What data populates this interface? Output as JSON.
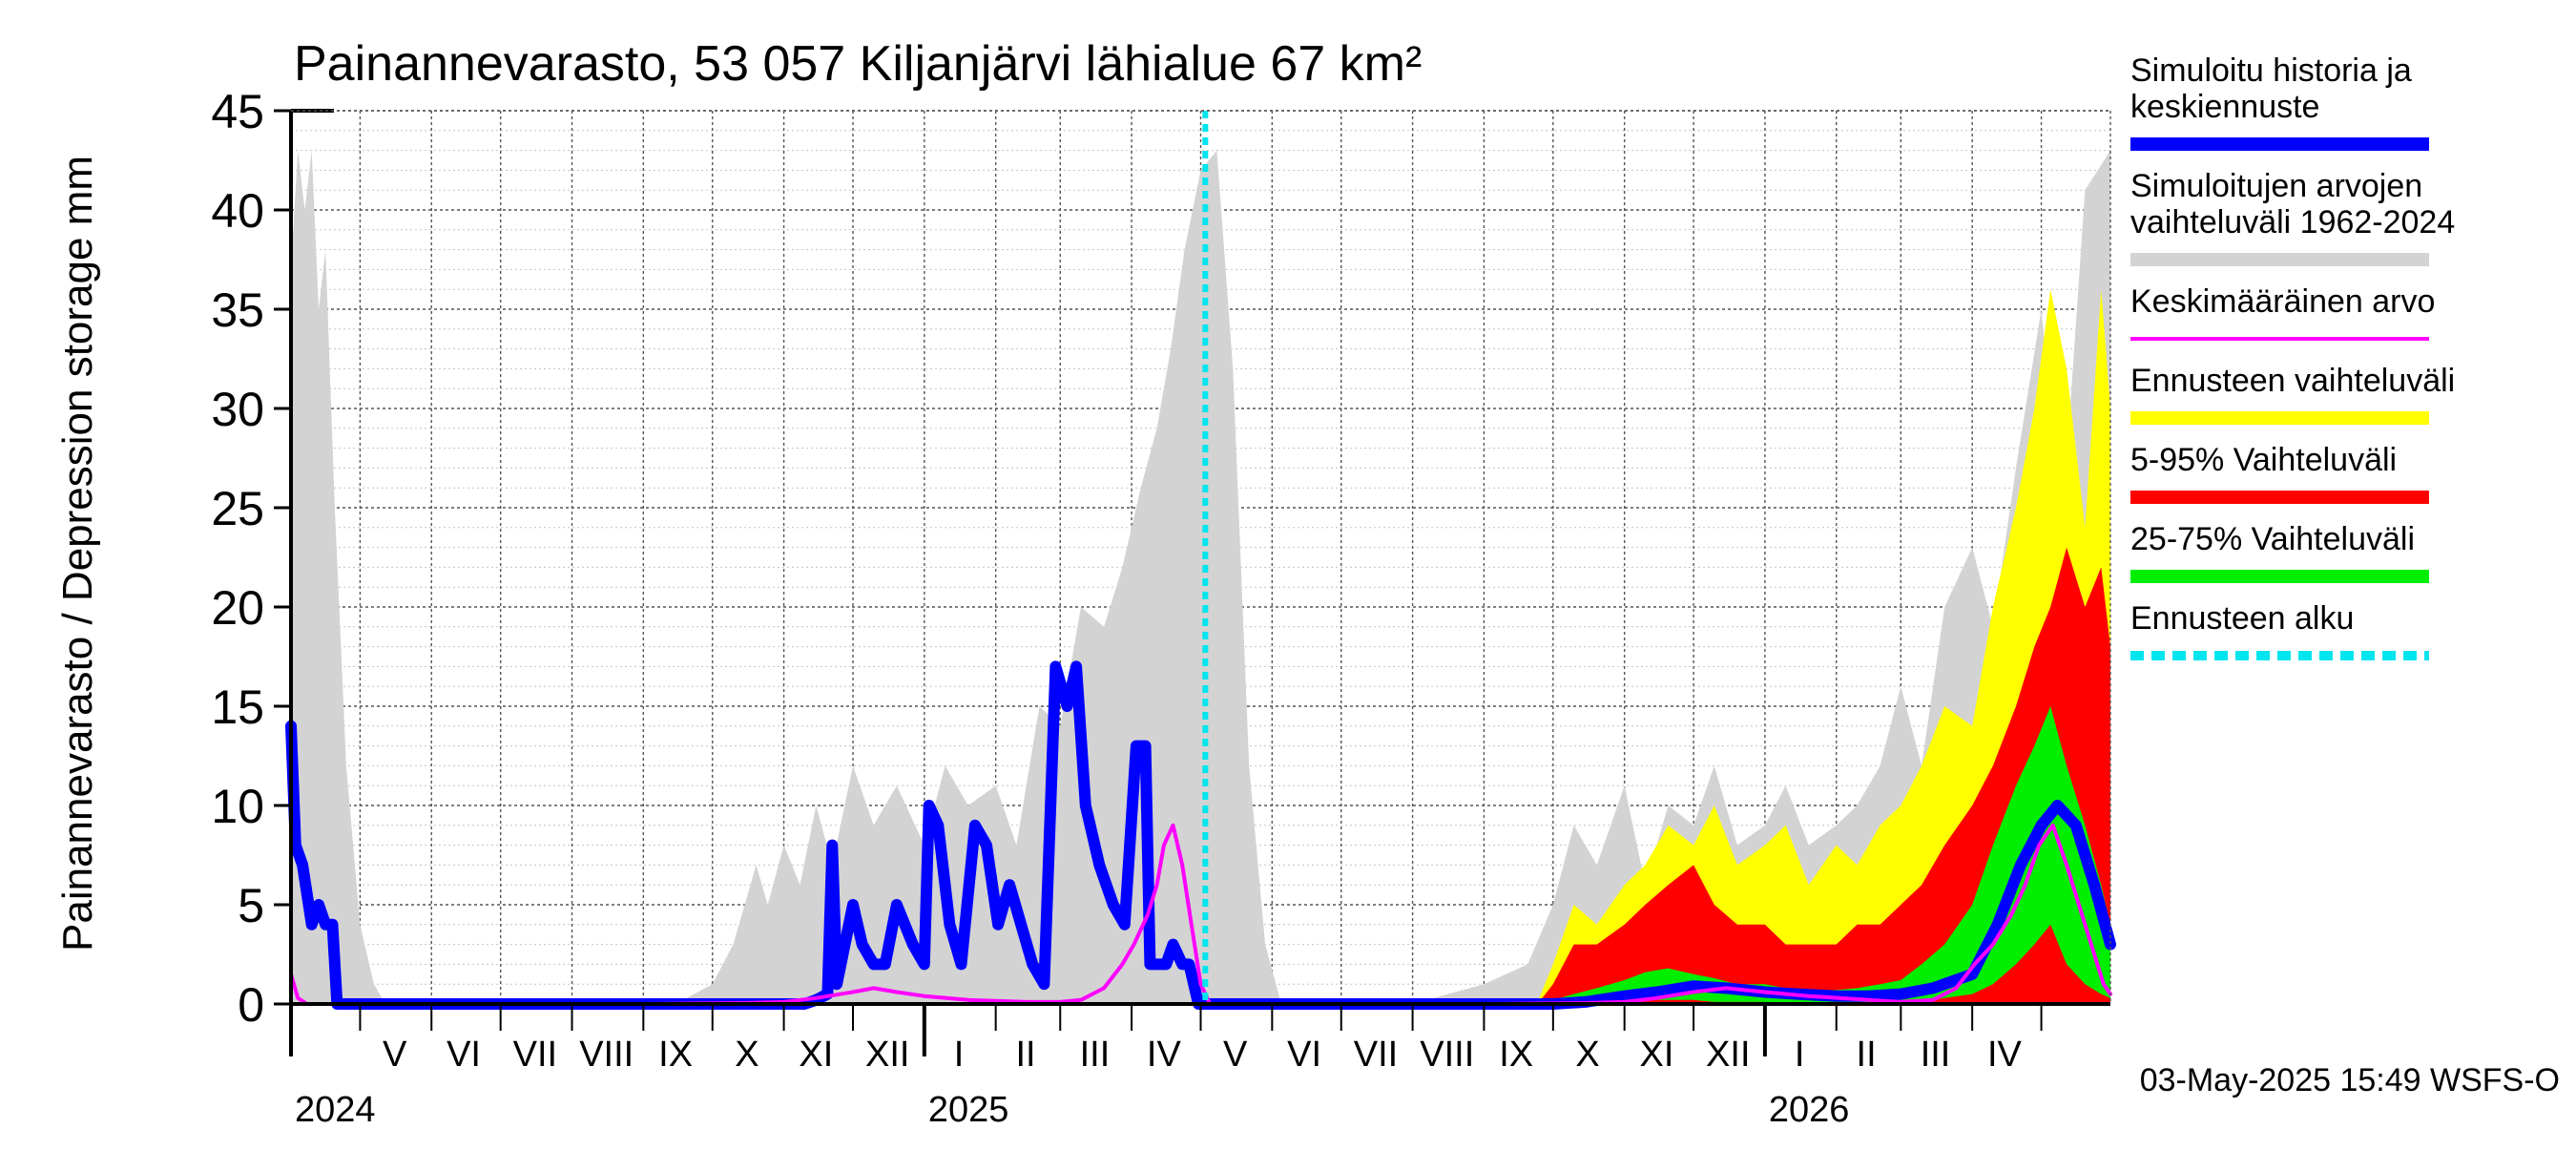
{
  "chart_data": {
    "type": "area",
    "title": "Painannevarasto, 53 057 Kiljanjärvi lähialue 67 km²",
    "ylabel": "Painannevarasto / Depression storage    mm",
    "ylim": [
      0,
      45
    ],
    "yticks": [
      0,
      5,
      10,
      15,
      20,
      25,
      30,
      35,
      40,
      45
    ],
    "xlim": [
      "2024-04-01",
      "2026-05-31"
    ],
    "forecast_start": "2025-05-03",
    "grid": true,
    "legend_position": "right",
    "month_labels": [
      {
        "label": "V",
        "date": "2024-05-16"
      },
      {
        "label": "VI",
        "date": "2024-06-15"
      },
      {
        "label": "VII",
        "date": "2024-07-16"
      },
      {
        "label": "VIII",
        "date": "2024-08-16"
      },
      {
        "label": "IX",
        "date": "2024-09-15"
      },
      {
        "label": "X",
        "date": "2024-10-16"
      },
      {
        "label": "XI",
        "date": "2024-11-15"
      },
      {
        "label": "XII",
        "date": "2024-12-16"
      },
      {
        "label": "I",
        "date": "2025-01-16"
      },
      {
        "label": "II",
        "date": "2025-02-14"
      },
      {
        "label": "III",
        "date": "2025-03-16"
      },
      {
        "label": "IV",
        "date": "2025-04-15"
      },
      {
        "label": "V",
        "date": "2025-05-16"
      },
      {
        "label": "VI",
        "date": "2025-06-15"
      },
      {
        "label": "VII",
        "date": "2025-07-16"
      },
      {
        "label": "VIII",
        "date": "2025-08-16"
      },
      {
        "label": "IX",
        "date": "2025-09-15"
      },
      {
        "label": "X",
        "date": "2025-10-16"
      },
      {
        "label": "XI",
        "date": "2025-11-15"
      },
      {
        "label": "XII",
        "date": "2025-12-16"
      },
      {
        "label": "I",
        "date": "2026-01-16"
      },
      {
        "label": "II",
        "date": "2026-02-14"
      },
      {
        "label": "III",
        "date": "2026-03-16"
      },
      {
        "label": "IV",
        "date": "2026-04-15"
      }
    ],
    "year_labels": [
      {
        "label": "2024",
        "date": "2024-04-01"
      },
      {
        "label": "2025",
        "date": "2025-01-01"
      },
      {
        "label": "2026",
        "date": "2026-01-01"
      }
    ],
    "series": [
      {
        "name": "Simuloitujen arvojen vaihteluväli 1962-2024",
        "kind": "band",
        "color": "#d3d3d3",
        "x": [
          "2024-04-01",
          "2024-04-04",
          "2024-04-07",
          "2024-04-10",
          "2024-04-13",
          "2024-04-16",
          "2024-04-20",
          "2024-04-25",
          "2024-05-01",
          "2024-05-07",
          "2024-05-12",
          "2024-06-15",
          "2024-08-01",
          "2024-09-15",
          "2024-10-01",
          "2024-10-10",
          "2024-10-20",
          "2024-10-25",
          "2024-11-01",
          "2024-11-08",
          "2024-11-15",
          "2024-11-22",
          "2024-12-01",
          "2024-12-10",
          "2024-12-20",
          "2025-01-01",
          "2025-01-10",
          "2025-01-20",
          "2025-02-01",
          "2025-02-10",
          "2025-02-20",
          "2025-03-01",
          "2025-03-10",
          "2025-03-20",
          "2025-03-28",
          "2025-04-05",
          "2025-04-12",
          "2025-04-18",
          "2025-04-24",
          "2025-05-01",
          "2025-05-08",
          "2025-05-15",
          "2025-05-22",
          "2025-05-29",
          "2025-06-05",
          "2025-06-20",
          "2025-08-01",
          "2025-09-01",
          "2025-09-20",
          "2025-10-01",
          "2025-10-10",
          "2025-10-20",
          "2025-11-01",
          "2025-11-10",
          "2025-11-20",
          "2025-12-01",
          "2025-12-10",
          "2025-12-20",
          "2026-01-01",
          "2026-01-10",
          "2026-01-20",
          "2026-02-01",
          "2026-02-10",
          "2026-02-20",
          "2026-03-01",
          "2026-03-10",
          "2026-03-20",
          "2026-04-01",
          "2026-04-10",
          "2026-04-20",
          "2026-05-01",
          "2026-05-10",
          "2026-05-20",
          "2026-05-31"
        ],
        "upper": [
          37,
          43,
          40,
          43,
          35,
          38,
          25,
          12,
          4,
          1,
          0,
          0,
          0,
          0,
          1,
          3,
          7,
          5,
          8,
          6,
          10,
          7,
          12,
          9,
          11,
          8,
          12,
          10,
          11,
          8,
          15,
          14,
          20,
          19,
          22,
          26,
          29,
          33,
          38,
          42,
          43,
          32,
          12,
          3,
          0,
          0,
          0,
          1,
          2,
          5,
          9,
          7,
          11,
          6,
          10,
          9,
          12,
          8,
          9,
          11,
          8,
          9,
          10,
          12,
          16,
          12,
          20,
          23,
          19,
          27,
          35,
          24,
          41,
          43
        ],
        "lower": [
          0,
          0,
          0,
          0,
          0,
          0,
          0,
          0,
          0,
          0,
          0,
          0,
          0,
          0,
          0,
          0,
          0,
          0,
          0,
          0,
          0,
          0,
          0,
          0,
          0,
          0,
          0,
          0,
          0,
          0,
          0,
          0,
          0,
          0,
          0,
          0,
          0,
          0,
          0,
          0,
          0,
          0,
          0,
          0,
          0,
          0,
          0,
          0,
          0,
          0,
          0,
          0,
          0,
          0,
          0,
          0,
          0,
          0,
          0,
          0,
          0,
          0,
          0,
          0,
          0,
          0,
          0,
          0,
          0,
          0,
          0,
          0,
          0,
          0
        ]
      },
      {
        "name": "Ennusteen vaihteluväli",
        "kind": "band",
        "color": "#ffff00",
        "x": [
          "2025-09-25",
          "2025-10-01",
          "2025-10-10",
          "2025-10-20",
          "2025-11-01",
          "2025-11-10",
          "2025-11-20",
          "2025-12-01",
          "2025-12-10",
          "2025-12-20",
          "2026-01-01",
          "2026-01-10",
          "2026-01-20",
          "2026-02-01",
          "2026-02-10",
          "2026-02-20",
          "2026-03-01",
          "2026-03-10",
          "2026-03-20",
          "2026-04-01",
          "2026-04-10",
          "2026-04-20",
          "2026-04-28",
          "2026-05-05",
          "2026-05-12",
          "2026-05-20",
          "2026-05-27",
          "2026-05-31"
        ],
        "upper": [
          0.3,
          2,
          5,
          4,
          6,
          7,
          9,
          8,
          10,
          7,
          8,
          9,
          6,
          8,
          7,
          9,
          10,
          12,
          15,
          14,
          20,
          25,
          30,
          36,
          32,
          24,
          36,
          30
        ],
        "lower": [
          0,
          0,
          0,
          0,
          0,
          0,
          0,
          0,
          0,
          0,
          0,
          0,
          0,
          0,
          0,
          0,
          0,
          0,
          0,
          0,
          0,
          0,
          0,
          0,
          0,
          0,
          0,
          0
        ]
      },
      {
        "name": "5-95% Vaihteluväli",
        "kind": "band",
        "color": "#ff0000",
        "x": [
          "2025-09-25",
          "2025-10-01",
          "2025-10-10",
          "2025-10-20",
          "2025-11-01",
          "2025-11-10",
          "2025-11-20",
          "2025-12-01",
          "2025-12-10",
          "2025-12-20",
          "2026-01-01",
          "2026-01-10",
          "2026-01-20",
          "2026-02-01",
          "2026-02-10",
          "2026-02-20",
          "2026-03-01",
          "2026-03-10",
          "2026-03-20",
          "2026-04-01",
          "2026-04-10",
          "2026-04-20",
          "2026-04-28",
          "2026-05-05",
          "2026-05-12",
          "2026-05-20",
          "2026-05-27",
          "2026-05-31"
        ],
        "upper": [
          0.1,
          1,
          3,
          3,
          4,
          5,
          6,
          7,
          5,
          4,
          4,
          3,
          3,
          3,
          4,
          4,
          5,
          6,
          8,
          10,
          12,
          15,
          18,
          20,
          23,
          20,
          22,
          18
        ],
        "lower": [
          0,
          0,
          0,
          0,
          0,
          0,
          0,
          0,
          0,
          0,
          0,
          0,
          0,
          0,
          0,
          0,
          0,
          0,
          0,
          0,
          0,
          0,
          0,
          0,
          0,
          0,
          0,
          0
        ]
      },
      {
        "name": "25-75% Vaihteluväli",
        "kind": "band",
        "color": "#00ee00",
        "x": [
          "2025-09-25",
          "2025-10-01",
          "2025-10-10",
          "2025-10-20",
          "2025-11-01",
          "2025-11-10",
          "2025-11-20",
          "2025-12-01",
          "2025-12-10",
          "2025-12-20",
          "2026-01-01",
          "2026-01-10",
          "2026-01-20",
          "2026-02-01",
          "2026-02-10",
          "2026-02-20",
          "2026-03-01",
          "2026-03-10",
          "2026-03-20",
          "2026-04-01",
          "2026-04-10",
          "2026-04-20",
          "2026-04-28",
          "2026-05-05",
          "2026-05-12",
          "2026-05-20",
          "2026-05-27",
          "2026-05-31"
        ],
        "upper": [
          0,
          0.2,
          0.5,
          0.8,
          1.2,
          1.6,
          1.8,
          1.5,
          1.3,
          1,
          1,
          0.8,
          0.7,
          0.7,
          0.8,
          1,
          1.2,
          2,
          3,
          5,
          8,
          11,
          13,
          15,
          12,
          9,
          6,
          4
        ],
        "lower": [
          0,
          0,
          0,
          0,
          0.1,
          0.2,
          0.2,
          0.2,
          0.1,
          0.1,
          0.1,
          0,
          0,
          0,
          0,
          0,
          0,
          0.1,
          0.3,
          0.5,
          1,
          2,
          3,
          4,
          2,
          1,
          0.5,
          0.3
        ]
      },
      {
        "name": "Simuloitu historia ja keskiennuste",
        "kind": "line",
        "color": "#0000ff",
        "x": [
          "2024-04-01",
          "2024-04-03",
          "2024-04-06",
          "2024-04-10",
          "2024-04-13",
          "2024-04-16",
          "2024-04-19",
          "2024-04-21",
          "2024-04-24",
          "2024-05-15",
          "2024-07-01",
          "2024-09-01",
          "2024-11-01",
          "2024-11-10",
          "2024-11-15",
          "2024-11-20",
          "2024-11-22",
          "2024-11-24",
          "2024-12-01",
          "2024-12-05",
          "2024-12-10",
          "2024-12-15",
          "2024-12-20",
          "2024-12-27",
          "2025-01-01",
          "2025-01-03",
          "2025-01-07",
          "2025-01-12",
          "2025-01-17",
          "2025-01-23",
          "2025-01-28",
          "2025-02-02",
          "2025-02-07",
          "2025-02-12",
          "2025-02-17",
          "2025-02-22",
          "2025-02-27",
          "2025-03-04",
          "2025-03-08",
          "2025-03-12",
          "2025-03-18",
          "2025-03-24",
          "2025-03-29",
          "2025-04-03",
          "2025-04-07",
          "2025-04-09",
          "2025-04-11",
          "2025-04-13",
          "2025-04-16",
          "2025-04-19",
          "2025-04-23",
          "2025-04-26",
          "2025-04-30",
          "2025-05-03",
          "2025-06-15",
          "2025-08-01",
          "2025-09-20",
          "2025-10-01",
          "2025-10-15",
          "2025-11-01",
          "2025-11-15",
          "2025-12-01",
          "2025-12-15",
          "2026-01-01",
          "2026-01-15",
          "2026-02-01",
          "2026-02-15",
          "2026-03-01",
          "2026-03-15",
          "2026-04-01",
          "2026-04-12",
          "2026-04-22",
          "2026-05-01",
          "2026-05-08",
          "2026-05-16",
          "2026-05-24",
          "2026-05-31"
        ],
        "y": [
          14,
          8,
          7,
          4,
          5,
          4,
          4,
          0,
          0,
          0,
          0,
          0,
          0,
          0,
          0.2,
          0.5,
          8,
          1,
          5,
          3,
          2,
          2,
          5,
          3,
          2,
          10,
          9,
          4,
          2,
          9,
          8,
          4,
          6,
          4,
          2,
          1,
          17,
          15,
          17,
          10,
          7,
          5,
          4,
          13,
          13,
          2,
          2,
          2,
          2,
          3,
          2,
          2,
          0,
          0,
          0,
          0,
          0,
          0,
          0.1,
          0.4,
          0.6,
          0.9,
          0.8,
          0.6,
          0.5,
          0.4,
          0.4,
          0.5,
          0.8,
          1.5,
          4,
          7,
          9,
          10,
          9,
          6,
          3
        ]
      },
      {
        "name": "Keskimääräinen arvo",
        "kind": "line",
        "color": "#ff00ff",
        "x": [
          "2024-04-01",
          "2024-04-04",
          "2024-04-08",
          "2024-04-20",
          "2024-06-01",
          "2024-09-01",
          "2024-10-15",
          "2024-11-01",
          "2024-11-15",
          "2024-12-01",
          "2024-12-10",
          "2024-12-20",
          "2025-01-01",
          "2025-01-20",
          "2025-02-15",
          "2025-03-01",
          "2025-03-10",
          "2025-03-20",
          "2025-03-28",
          "2025-04-02",
          "2025-04-08",
          "2025-04-12",
          "2025-04-15",
          "2025-04-19",
          "2025-04-23",
          "2025-04-27",
          "2025-05-01",
          "2025-05-05",
          "2025-05-15",
          "2025-06-15",
          "2025-09-01",
          "2025-10-15",
          "2025-11-01",
          "2025-11-15",
          "2025-12-01",
          "2025-12-15",
          "2026-01-01",
          "2026-01-20",
          "2026-02-15",
          "2026-03-01",
          "2026-03-15",
          "2026-03-25",
          "2026-04-02",
          "2026-04-10",
          "2026-04-18",
          "2026-04-24",
          "2026-04-30",
          "2026-05-06",
          "2026-05-12",
          "2026-05-20",
          "2026-05-28",
          "2026-05-31"
        ],
        "y": [
          1.5,
          0.3,
          0,
          0,
          0,
          0,
          0.05,
          0.1,
          0.3,
          0.6,
          0.8,
          0.6,
          0.4,
          0.2,
          0.1,
          0.1,
          0.2,
          0.8,
          2,
          3,
          4.5,
          6,
          8,
          9,
          7,
          4,
          1,
          0,
          0,
          0,
          0,
          0.05,
          0.1,
          0.3,
          0.6,
          0.8,
          0.6,
          0.4,
          0.2,
          0.1,
          0.2,
          0.8,
          2,
          3,
          4.5,
          6,
          8,
          9,
          7,
          4,
          1,
          0.5
        ]
      },
      {
        "name": "Ennusteen alku",
        "kind": "vline",
        "color": "#00e5ee",
        "x": [
          "2025-05-03"
        ]
      }
    ]
  },
  "footer": {
    "timestamp": "03-May-2025 15:49 WSFS-O"
  },
  "legend": [
    {
      "lines": [
        "Simuloitu historia ja",
        "keskiennuste"
      ],
      "color": "#0000ff",
      "style": "thick"
    },
    {
      "lines": [
        "Simuloitujen arvojen",
        "vaihteluväli 1962-2024"
      ],
      "color": "#d3d3d3",
      "style": "thick"
    },
    {
      "lines": [
        "Keskimääräinen arvo"
      ],
      "color": "#ff00ff",
      "style": "thin"
    },
    {
      "lines": [
        "Ennusteen vaihteluväli"
      ],
      "color": "#ffff00",
      "style": "thick"
    },
    {
      "lines": [
        "5-95% Vaihteluväli"
      ],
      "color": "#ff0000",
      "style": "thick"
    },
    {
      "lines": [
        "25-75% Vaihteluväli"
      ],
      "color": "#00ee00",
      "style": "thick"
    },
    {
      "lines": [
        "Ennusteen alku"
      ],
      "color": "#00e5ee",
      "style": "dashed"
    }
  ]
}
